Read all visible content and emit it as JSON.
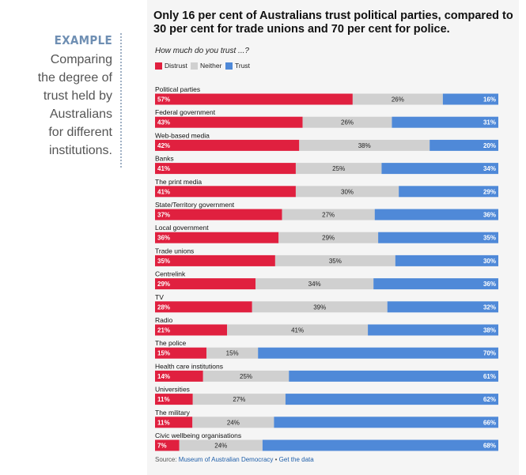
{
  "sidebar": {
    "heading": "EXAMPLE",
    "text": "Comparing\nthe degree of\ntrust held by\nAustralians\nfor different\ninstitutions."
  },
  "source": {
    "prefix": "Source: ",
    "link1": "Museum of Australian Democracy",
    "separator": " • ",
    "link2": "Get the data"
  },
  "colors": {
    "distrust": "#e0203f",
    "neither": "#d0d0d0",
    "trust": "#4f89d8"
  },
  "chart_data": {
    "type": "bar",
    "stacked": true,
    "orientation": "horizontal",
    "title": "Only 16 per cent of Australians trust political parties, compared to 30 per cent for trade unions and 70 per cent for police.",
    "subtitle": "How much do you trust ...?",
    "legend": "top-left",
    "categories": [
      "Political parties",
      "Federal government",
      "Web-based media",
      "Banks",
      "The print media",
      "State/Territory government",
      "Local government",
      "Trade unions",
      "Centrelink",
      "TV",
      "Radio",
      "The police",
      "Health care institutions",
      "Universities",
      "The military",
      "Civic wellbeing organisations"
    ],
    "series": [
      {
        "name": "Distrust",
        "values": [
          57,
          43,
          42,
          41,
          41,
          37,
          36,
          35,
          29,
          28,
          21,
          15,
          14,
          11,
          11,
          7
        ]
      },
      {
        "name": "Neither",
        "values": [
          26,
          26,
          38,
          25,
          30,
          27,
          29,
          35,
          34,
          39,
          41,
          15,
          25,
          27,
          24,
          24
        ]
      },
      {
        "name": "Trust",
        "values": [
          16,
          31,
          20,
          34,
          29,
          36,
          35,
          30,
          36,
          32,
          38,
          70,
          61,
          62,
          66,
          68
        ]
      }
    ],
    "value_suffix": "%"
  }
}
